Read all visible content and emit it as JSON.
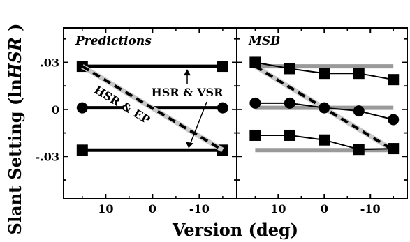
{
  "chart_data": {
    "type": "line",
    "xlabel": "Version (deg)",
    "ylabel_parts": {
      "before": "Slant Setting (ln",
      "italic": "HSR",
      "after": " )"
    },
    "xlim": [
      19,
      -18
    ],
    "ylim": [
      -0.057,
      0.052
    ],
    "x_ticks": [
      10,
      0,
      -10
    ],
    "x_tick_labels": [
      "10",
      "0",
      "-10"
    ],
    "y_ticks": [
      0.03,
      0,
      -0.03
    ],
    "y_tick_labels": [
      ".03",
      "0",
      "-.03"
    ],
    "panels": [
      {
        "title": "Predictions",
        "series": [
          {
            "role": "hsr-vsr-top",
            "style": "thick",
            "marker": "square",
            "x": [
              15,
              -15
            ],
            "y": [
              0.0275,
              0.0275
            ]
          },
          {
            "role": "hsr-vsr-mid",
            "style": "thick-gapped",
            "marker": "circle",
            "x": [
              15,
              -15
            ],
            "y": [
              0.001,
              0.001
            ]
          },
          {
            "role": "hsr-vsr-bottom",
            "style": "thick",
            "marker": "square",
            "x": [
              15,
              -15
            ],
            "y": [
              -0.026,
              -0.026
            ]
          },
          {
            "role": "hsr-ep",
            "style": "dashed",
            "marker": "none",
            "x": [
              15,
              -15
            ],
            "y": [
              0.0275,
              -0.026
            ]
          }
        ],
        "annotations": [
          {
            "text": "HSR & VSR",
            "kind": "label"
          },
          {
            "text": "HSR & EP",
            "kind": "rotated-label"
          }
        ]
      },
      {
        "title": "MSB",
        "series": [
          {
            "role": "pred-top",
            "style": "gray-band",
            "marker": "none",
            "x": [
              15,
              -15
            ],
            "y": [
              0.0275,
              0.0275
            ]
          },
          {
            "role": "pred-mid",
            "style": "gray-band",
            "marker": "none",
            "x": [
              15,
              -15
            ],
            "y": [
              0.001,
              0.001
            ]
          },
          {
            "role": "pred-bottom",
            "style": "gray-band",
            "marker": "none",
            "x": [
              15,
              -15
            ],
            "y": [
              -0.026,
              -0.026
            ]
          },
          {
            "role": "pred-ep",
            "style": "dashed",
            "marker": "none",
            "x": [
              15,
              -15
            ],
            "y": [
              0.0275,
              -0.026
            ]
          },
          {
            "role": "data-top",
            "style": "thin",
            "marker": "square",
            "x": [
              15,
              7.5,
              0,
              -7.5,
              -15
            ],
            "y": [
              0.03,
              0.026,
              0.023,
              0.023,
              0.019
            ]
          },
          {
            "role": "data-mid",
            "style": "thin",
            "marker": "circle",
            "x": [
              15,
              7.5,
              0,
              -7.5,
              -15
            ],
            "y": [
              0.004,
              0.004,
              0.001,
              -0.001,
              -0.0065
            ]
          },
          {
            "role": "data-bottom",
            "style": "thin",
            "marker": "square",
            "x": [
              15,
              7.5,
              0,
              -7.5,
              -15
            ],
            "y": [
              -0.0165,
              -0.0165,
              -0.0195,
              -0.0255,
              -0.025
            ]
          }
        ]
      }
    ]
  }
}
